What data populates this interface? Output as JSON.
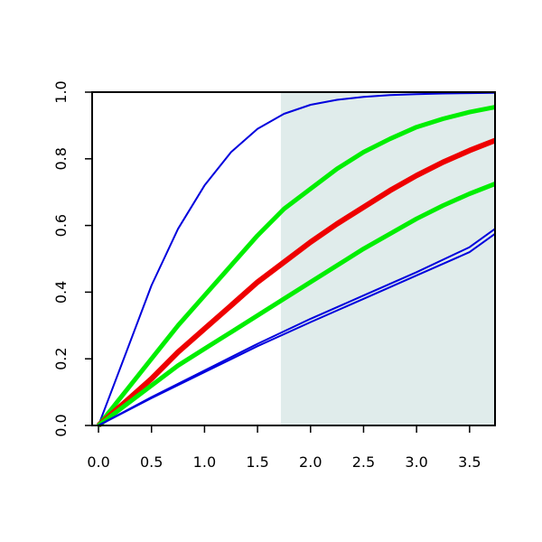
{
  "chart_data": {
    "type": "line",
    "title": "",
    "xlabel": "",
    "ylabel": "",
    "xlim": [
      -0.06,
      3.74
    ],
    "ylim": [
      0.0,
      1.0
    ],
    "grid": false,
    "x_ticks": [
      0.0,
      0.5,
      1.0,
      1.5,
      2.0,
      2.5,
      3.0,
      3.5
    ],
    "x_tick_labels": [
      "0.0",
      "0.5",
      "1.0",
      "1.5",
      "2.0",
      "2.5",
      "3.0",
      "3.5"
    ],
    "y_ticks": [
      0.0,
      0.2,
      0.4,
      0.6,
      0.8,
      1.0
    ],
    "y_tick_labels": [
      "0.0",
      "0.2",
      "0.4",
      "0.6",
      "0.8",
      "1.0"
    ],
    "shaded_region": {
      "x_start": 1.72,
      "x_end": 3.74,
      "color": "#e0eceb"
    },
    "series": [
      {
        "color": "#0000dd",
        "width": 2,
        "x": [
          0.0,
          0.25,
          0.5,
          0.75,
          1.0,
          1.25,
          1.5,
          1.75,
          2.0,
          2.25,
          2.5,
          2.75,
          3.0,
          3.25,
          3.5,
          3.74
        ],
        "y": [
          0.0,
          0.21,
          0.42,
          0.59,
          0.72,
          0.82,
          0.89,
          0.935,
          0.962,
          0.977,
          0.986,
          0.991,
          0.994,
          0.996,
          0.997,
          0.998
        ]
      },
      {
        "color": "#00ee00",
        "width": 5,
        "x": [
          0.0,
          0.25,
          0.5,
          0.75,
          1.0,
          1.25,
          1.5,
          1.75,
          2.0,
          2.25,
          2.5,
          2.75,
          3.0,
          3.25,
          3.5,
          3.74
        ],
        "y": [
          0.0,
          0.1,
          0.2,
          0.3,
          0.39,
          0.48,
          0.57,
          0.65,
          0.71,
          0.77,
          0.82,
          0.86,
          0.895,
          0.92,
          0.94,
          0.955
        ]
      },
      {
        "color": "#ee0000",
        "width": 6,
        "x": [
          0.0,
          0.25,
          0.5,
          0.75,
          1.0,
          1.25,
          1.5,
          1.75,
          2.0,
          2.25,
          2.5,
          2.75,
          3.0,
          3.25,
          3.5,
          3.74
        ],
        "y": [
          0.0,
          0.07,
          0.14,
          0.22,
          0.29,
          0.36,
          0.43,
          0.49,
          0.55,
          0.605,
          0.655,
          0.705,
          0.75,
          0.79,
          0.825,
          0.855
        ]
      },
      {
        "color": "#00ee00",
        "width": 5,
        "x": [
          0.0,
          0.25,
          0.5,
          0.75,
          1.0,
          1.25,
          1.5,
          1.75,
          2.0,
          2.25,
          2.5,
          2.75,
          3.0,
          3.25,
          3.5,
          3.74
        ],
        "y": [
          0.0,
          0.06,
          0.12,
          0.18,
          0.23,
          0.28,
          0.33,
          0.38,
          0.43,
          0.48,
          0.53,
          0.575,
          0.62,
          0.66,
          0.695,
          0.725
        ]
      },
      {
        "color": "#0000dd",
        "width": 2,
        "x": [
          0.0,
          0.5,
          1.0,
          1.5,
          2.0,
          2.5,
          3.0,
          3.5,
          3.74
        ],
        "y": [
          0.0,
          0.085,
          0.165,
          0.245,
          0.32,
          0.39,
          0.46,
          0.535,
          0.59
        ]
      },
      {
        "color": "#0000dd",
        "width": 2,
        "x": [
          0.0,
          0.5,
          1.0,
          1.5,
          2.0,
          2.5,
          3.0,
          3.5,
          3.74
        ],
        "y": [
          0.0,
          0.082,
          0.16,
          0.238,
          0.31,
          0.38,
          0.45,
          0.52,
          0.575
        ]
      }
    ]
  }
}
